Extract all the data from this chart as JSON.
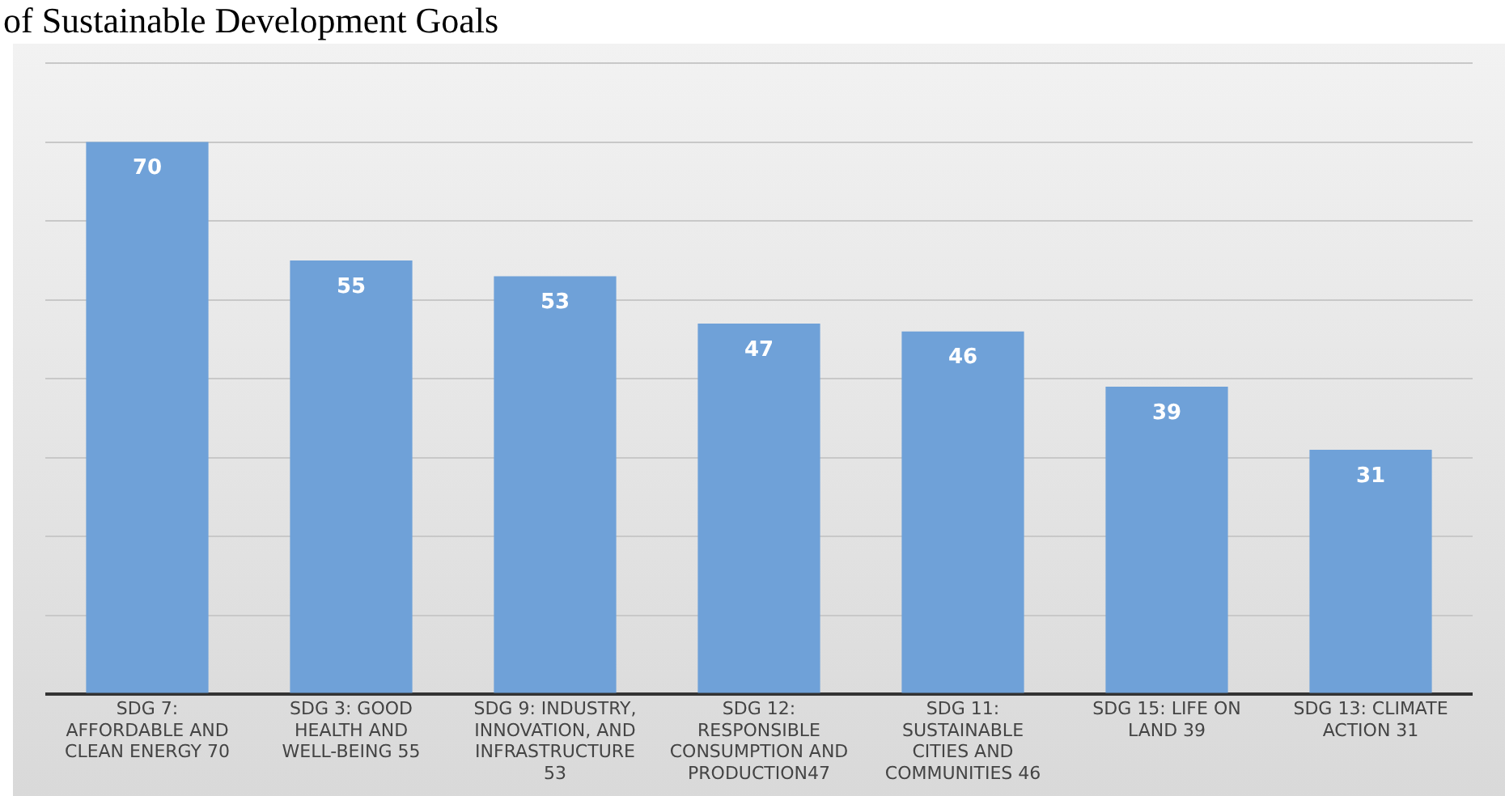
{
  "chart_data": {
    "type": "bar",
    "title": "of Sustainable Development Goals",
    "categories": [
      "SDG 7: AFFORDABLE AND CLEAN ENERGY 70",
      "SDG 3: GOOD HEALTH AND WELL-BEING 55",
      "SDG 9: INDUSTRY, INNOVATION, AND INFRASTRUCTURE 53",
      "SDG 12: RESPONSIBLE CONSUMPTION AND PRODUCTION47",
      "SDG 11: SUSTAINABLE CITIES AND COMMUNITIES 46",
      "SDG 15: LIFE ON LAND 39",
      "SDG 13: CLIMATE ACTION 31"
    ],
    "values": [
      70,
      55,
      53,
      47,
      46,
      39,
      31
    ],
    "color": "#6fa1d8",
    "ylim": [
      0,
      80
    ],
    "yticks": [
      {
        "value": 0,
        "label": null
      },
      {
        "value": 10,
        "label": null
      },
      {
        "value": 20,
        "label": null
      },
      {
        "value": 30,
        "label": null
      },
      {
        "value": 40,
        "label": null
      },
      {
        "value": 50,
        "label": null
      },
      {
        "value": 60,
        "label": null
      },
      {
        "value": 70,
        "label": null
      },
      {
        "value": 80,
        "label": null
      }
    ],
    "grid": "y",
    "data_labels": true,
    "tick_labels": "x"
  }
}
